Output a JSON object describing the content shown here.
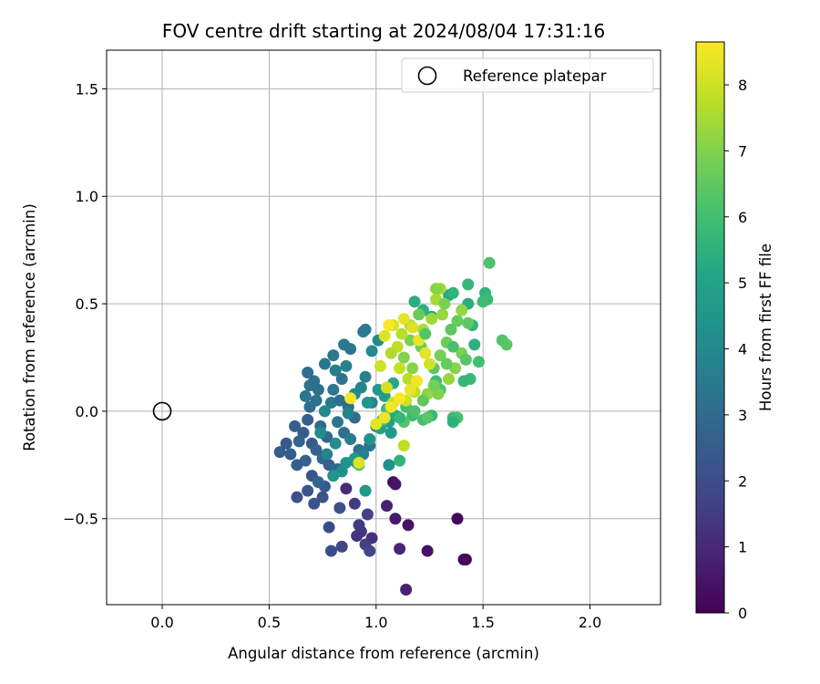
{
  "chart_data": {
    "type": "scatter",
    "title": "FOV centre drift starting at 2024/08/04 17:31:16",
    "xlabel": "Angular distance from reference (arcmin)",
    "ylabel": "Rotation from reference (arcmin)",
    "xlim": [
      -0.26,
      2.33
    ],
    "ylim": [
      -0.9,
      1.68
    ],
    "xticks": [
      "0.0",
      "0.5",
      "1.0",
      "1.5",
      "2.0"
    ],
    "yticks": [
      "−0.5",
      "0.0",
      "0.5",
      "1.0",
      "1.5"
    ],
    "grid": true,
    "legend": {
      "position": "top-right",
      "entries": [
        "Reference platepar"
      ]
    },
    "reference_point": {
      "x": 0.0,
      "y": 0.0
    },
    "colorbar": {
      "label": "Hours from first FF file",
      "range": [
        0,
        8.65
      ],
      "ticks": [
        "0",
        "1",
        "2",
        "3",
        "4",
        "5",
        "6",
        "7",
        "8"
      ],
      "colormap": "viridis"
    },
    "series": [
      {
        "values": [
          {
            "x": 1.08,
            "y": -0.33,
            "h": 0.3
          },
          {
            "x": 1.09,
            "y": -0.34,
            "h": 0.5
          },
          {
            "x": 1.05,
            "y": -0.44,
            "h": 0.8
          },
          {
            "x": 1.09,
            "y": -0.5,
            "h": 0.6
          },
          {
            "x": 1.15,
            "y": -0.53,
            "h": 0.4
          },
          {
            "x": 1.38,
            "y": -0.5,
            "h": 0.2
          },
          {
            "x": 1.42,
            "y": -0.69,
            "h": 0.1
          },
          {
            "x": 1.41,
            "y": -0.69,
            "h": 0.2
          },
          {
            "x": 1.24,
            "y": -0.65,
            "h": 0.4
          },
          {
            "x": 1.11,
            "y": -0.64,
            "h": 0.9
          },
          {
            "x": 1.14,
            "y": -0.83,
            "h": 0.8
          },
          {
            "x": 0.98,
            "y": -0.59,
            "h": 1.2
          },
          {
            "x": 0.93,
            "y": -0.56,
            "h": 1.4
          },
          {
            "x": 0.92,
            "y": -0.53,
            "h": 1.5
          },
          {
            "x": 0.95,
            "y": -0.62,
            "h": 1.6
          },
          {
            "x": 0.97,
            "y": -0.65,
            "h": 1.8
          },
          {
            "x": 0.91,
            "y": -0.58,
            "h": 1.3
          },
          {
            "x": 0.86,
            "y": -0.36,
            "h": 1.1
          },
          {
            "x": 0.9,
            "y": -0.43,
            "h": 1.5
          },
          {
            "x": 0.96,
            "y": -0.48,
            "h": 1.7
          },
          {
            "x": 0.84,
            "y": -0.63,
            "h": 1.9
          },
          {
            "x": 0.79,
            "y": -0.65,
            "h": 2.0
          },
          {
            "x": 0.78,
            "y": -0.54,
            "h": 2.0
          },
          {
            "x": 0.83,
            "y": -0.45,
            "h": 2.1
          },
          {
            "x": 0.75,
            "y": -0.4,
            "h": 2.2
          },
          {
            "x": 0.68,
            "y": -0.37,
            "h": 2.3
          },
          {
            "x": 0.63,
            "y": -0.4,
            "h": 2.1
          },
          {
            "x": 0.71,
            "y": -0.43,
            "h": 2.2
          },
          {
            "x": 0.76,
            "y": -0.35,
            "h": 2.4
          },
          {
            "x": 0.55,
            "y": -0.19,
            "h": 2.5
          },
          {
            "x": 0.58,
            "y": -0.15,
            "h": 2.4
          },
          {
            "x": 0.6,
            "y": -0.2,
            "h": 2.5
          },
          {
            "x": 0.63,
            "y": -0.25,
            "h": 2.6
          },
          {
            "x": 0.67,
            "y": -0.23,
            "h": 2.7
          },
          {
            "x": 0.7,
            "y": -0.3,
            "h": 2.3
          },
          {
            "x": 0.73,
            "y": -0.33,
            "h": 2.8
          },
          {
            "x": 0.62,
            "y": -0.07,
            "h": 2.6
          },
          {
            "x": 0.66,
            "y": -0.1,
            "h": 2.5
          },
          {
            "x": 0.64,
            "y": -0.14,
            "h": 2.8
          },
          {
            "x": 0.68,
            "y": -0.04,
            "h": 2.6
          },
          {
            "x": 0.7,
            "y": -0.15,
            "h": 2.4
          },
          {
            "x": 0.72,
            "y": -0.18,
            "h": 2.7
          },
          {
            "x": 0.75,
            "y": -0.22,
            "h": 2.9
          },
          {
            "x": 0.78,
            "y": -0.25,
            "h": 2.6
          },
          {
            "x": 0.8,
            "y": -0.3,
            "h": 2.5
          },
          {
            "x": 0.82,
            "y": -0.27,
            "h": 2.8
          },
          {
            "x": 0.77,
            "y": -0.12,
            "h": 2.9
          },
          {
            "x": 0.74,
            "y": -0.07,
            "h": 3.0
          },
          {
            "x": 0.69,
            "y": 0.02,
            "h": 3.1
          },
          {
            "x": 0.72,
            "y": 0.05,
            "h": 3.2
          },
          {
            "x": 0.67,
            "y": 0.07,
            "h": 3.3
          },
          {
            "x": 0.69,
            "y": 0.12,
            "h": 3.3
          },
          {
            "x": 0.71,
            "y": 0.14,
            "h": 3.2
          },
          {
            "x": 0.68,
            "y": 0.18,
            "h": 3.1
          },
          {
            "x": 0.73,
            "y": 0.1,
            "h": 3.2
          },
          {
            "x": 0.76,
            "y": 0.22,
            "h": 3.4
          },
          {
            "x": 0.81,
            "y": 0.19,
            "h": 3.6
          },
          {
            "x": 0.8,
            "y": 0.26,
            "h": 3.5
          },
          {
            "x": 0.85,
            "y": 0.31,
            "h": 3.5
          },
          {
            "x": 0.88,
            "y": 0.29,
            "h": 3.4
          },
          {
            "x": 0.94,
            "y": 0.37,
            "h": 3.6
          },
          {
            "x": 0.95,
            "y": 0.38,
            "h": 3.5
          },
          {
            "x": 0.86,
            "y": 0.21,
            "h": 3.7
          },
          {
            "x": 0.84,
            "y": 0.15,
            "h": 3.3
          },
          {
            "x": 0.8,
            "y": 0.1,
            "h": 3.4
          },
          {
            "x": 0.79,
            "y": 0.04,
            "h": 3.5
          },
          {
            "x": 0.83,
            "y": 0.05,
            "h": 3.2
          },
          {
            "x": 0.87,
            "y": 0.02,
            "h": 3.1
          },
          {
            "x": 0.9,
            "y": -0.03,
            "h": 3.0
          },
          {
            "x": 0.82,
            "y": -0.05,
            "h": 3.3
          },
          {
            "x": 0.85,
            "y": -0.1,
            "h": 3.1
          },
          {
            "x": 0.88,
            "y": -0.13,
            "h": 3.6
          },
          {
            "x": 0.92,
            "y": -0.18,
            "h": 3.2
          },
          {
            "x": 0.91,
            "y": -0.24,
            "h": 3.5
          },
          {
            "x": 0.94,
            "y": -0.2,
            "h": 3.7
          },
          {
            "x": 0.97,
            "y": -0.16,
            "h": 3.4
          },
          {
            "x": 1.0,
            "y": -0.07,
            "h": 3.6
          },
          {
            "x": 0.98,
            "y": 0.04,
            "h": 3.8
          },
          {
            "x": 0.95,
            "y": 0.16,
            "h": 3.7
          },
          {
            "x": 0.93,
            "y": 0.11,
            "h": 3.9
          },
          {
            "x": 0.9,
            "y": 0.08,
            "h": 4.0
          },
          {
            "x": 0.87,
            "y": -0.01,
            "h": 3.9
          },
          {
            "x": 0.77,
            "y": -0.2,
            "h": 3.8
          },
          {
            "x": 0.74,
            "y": -0.1,
            "h": 4.1
          },
          {
            "x": 0.76,
            "y": 0.0,
            "h": 4.0
          },
          {
            "x": 0.81,
            "y": -0.15,
            "h": 4.2
          },
          {
            "x": 0.84,
            "y": -0.28,
            "h": 4.3
          },
          {
            "x": 0.8,
            "y": -0.3,
            "h": 4.5
          },
          {
            "x": 0.86,
            "y": -0.24,
            "h": 4.4
          },
          {
            "x": 0.95,
            "y": -0.37,
            "h": 4.6
          },
          {
            "x": 1.06,
            "y": -0.25,
            "h": 4.3
          },
          {
            "x": 1.11,
            "y": -0.23,
            "h": 5.6
          },
          {
            "x": 0.92,
            "y": -0.25,
            "h": 6.2
          },
          {
            "x": 0.9,
            "y": -0.22,
            "h": 4.7
          },
          {
            "x": 0.97,
            "y": -0.13,
            "h": 4.4
          },
          {
            "x": 0.96,
            "y": 0.04,
            "h": 4.5
          },
          {
            "x": 1.01,
            "y": 0.1,
            "h": 4.6
          },
          {
            "x": 1.04,
            "y": 0.07,
            "h": 4.8
          },
          {
            "x": 1.06,
            "y": -0.05,
            "h": 4.9
          },
          {
            "x": 1.02,
            "y": -0.08,
            "h": 5.0
          },
          {
            "x": 1.07,
            "y": -0.1,
            "h": 4.7
          },
          {
            "x": 1.09,
            "y": -0.02,
            "h": 5.1
          },
          {
            "x": 1.08,
            "y": 0.13,
            "h": 5.2
          },
          {
            "x": 1.01,
            "y": 0.33,
            "h": 4.2
          },
          {
            "x": 0.98,
            "y": 0.28,
            "h": 4.1
          },
          {
            "x": 1.18,
            "y": 0.51,
            "h": 5.4
          },
          {
            "x": 1.22,
            "y": 0.47,
            "h": 5.5
          },
          {
            "x": 1.26,
            "y": 0.44,
            "h": 5.3
          },
          {
            "x": 1.34,
            "y": 0.54,
            "h": 5.2
          },
          {
            "x": 1.36,
            "y": 0.55,
            "h": 5.6
          },
          {
            "x": 1.43,
            "y": 0.59,
            "h": 5.7
          },
          {
            "x": 1.51,
            "y": 0.55,
            "h": 5.6
          },
          {
            "x": 1.5,
            "y": 0.51,
            "h": 5.5
          },
          {
            "x": 1.43,
            "y": 0.5,
            "h": 5.4
          },
          {
            "x": 1.45,
            "y": 0.4,
            "h": 5.6
          },
          {
            "x": 1.46,
            "y": 0.31,
            "h": 5.5
          },
          {
            "x": 1.48,
            "y": 0.23,
            "h": 6.0
          },
          {
            "x": 1.44,
            "y": 0.15,
            "h": 5.8
          },
          {
            "x": 1.41,
            "y": 0.14,
            "h": 5.7
          },
          {
            "x": 1.36,
            "y": -0.03,
            "h": 5.8
          },
          {
            "x": 1.38,
            "y": -0.03,
            "h": 6.1
          },
          {
            "x": 1.36,
            "y": -0.05,
            "h": 5.5
          },
          {
            "x": 1.28,
            "y": 0.14,
            "h": 5.9
          },
          {
            "x": 1.3,
            "y": 0.1,
            "h": 6.2
          },
          {
            "x": 1.26,
            "y": -0.02,
            "h": 5.8
          },
          {
            "x": 1.22,
            "y": -0.04,
            "h": 6.0
          },
          {
            "x": 1.24,
            "y": -0.03,
            "h": 6.4
          },
          {
            "x": 1.17,
            "y": -0.02,
            "h": 5.9
          },
          {
            "x": 1.14,
            "y": 0.02,
            "h": 6.1
          },
          {
            "x": 1.13,
            "y": -0.05,
            "h": 6.3
          },
          {
            "x": 1.11,
            "y": -0.03,
            "h": 5.7
          },
          {
            "x": 1.05,
            "y": 0.01,
            "h": 5.9
          },
          {
            "x": 1.03,
            "y": -0.04,
            "h": 6.0
          },
          {
            "x": 1.53,
            "y": 0.69,
            "h": 6.2
          },
          {
            "x": 1.59,
            "y": 0.33,
            "h": 6.3
          },
          {
            "x": 1.61,
            "y": 0.31,
            "h": 6.4
          },
          {
            "x": 1.52,
            "y": 0.52,
            "h": 5.8
          },
          {
            "x": 1.5,
            "y": 0.51,
            "h": 5.9
          },
          {
            "x": 1.43,
            "y": 0.41,
            "h": 6.5
          },
          {
            "x": 1.38,
            "y": 0.42,
            "h": 6.6
          },
          {
            "x": 1.35,
            "y": 0.38,
            "h": 6.4
          },
          {
            "x": 1.33,
            "y": 0.32,
            "h": 6.7
          },
          {
            "x": 1.3,
            "y": 0.26,
            "h": 6.8
          },
          {
            "x": 1.27,
            "y": 0.2,
            "h": 6.5
          },
          {
            "x": 1.21,
            "y": 0.3,
            "h": 6.6
          },
          {
            "x": 1.16,
            "y": 0.33,
            "h": 6.9
          },
          {
            "x": 1.13,
            "y": 0.25,
            "h": 7.0
          },
          {
            "x": 1.17,
            "y": 0.2,
            "h": 7.1
          },
          {
            "x": 1.19,
            "y": 0.14,
            "h": 6.8
          },
          {
            "x": 1.24,
            "y": 0.08,
            "h": 7.2
          },
          {
            "x": 1.29,
            "y": 0.08,
            "h": 7.0
          },
          {
            "x": 1.34,
            "y": 0.15,
            "h": 7.3
          },
          {
            "x": 1.37,
            "y": 0.2,
            "h": 7.1
          },
          {
            "x": 1.4,
            "y": 0.27,
            "h": 6.9
          },
          {
            "x": 1.4,
            "y": 0.47,
            "h": 7.2
          },
          {
            "x": 1.3,
            "y": 0.57,
            "h": 7.4
          },
          {
            "x": 1.28,
            "y": 0.52,
            "h": 7.5
          },
          {
            "x": 1.31,
            "y": 0.45,
            "h": 7.3
          },
          {
            "x": 1.26,
            "y": 0.43,
            "h": 7.4
          },
          {
            "x": 1.22,
            "y": 0.38,
            "h": 7.6
          },
          {
            "x": 1.16,
            "y": 0.4,
            "h": 7.5
          },
          {
            "x": 1.12,
            "y": 0.36,
            "h": 7.7
          },
          {
            "x": 1.1,
            "y": 0.3,
            "h": 7.8
          },
          {
            "x": 1.07,
            "y": 0.27,
            "h": 7.6
          },
          {
            "x": 1.11,
            "y": 0.2,
            "h": 7.9
          },
          {
            "x": 1.15,
            "y": 0.15,
            "h": 7.7
          },
          {
            "x": 1.18,
            "y": 0.09,
            "h": 7.8
          },
          {
            "x": 1.14,
            "y": 0.05,
            "h": 8.0
          },
          {
            "x": 1.08,
            "y": 0.04,
            "h": 7.9
          },
          {
            "x": 1.05,
            "y": 0.11,
            "h": 8.1
          },
          {
            "x": 1.02,
            "y": 0.21,
            "h": 8.0
          },
          {
            "x": 1.04,
            "y": 0.35,
            "h": 8.2
          },
          {
            "x": 1.08,
            "y": 0.4,
            "h": 8.1
          },
          {
            "x": 1.13,
            "y": 0.43,
            "h": 8.3
          },
          {
            "x": 1.17,
            "y": 0.39,
            "h": 8.2
          },
          {
            "x": 1.2,
            "y": 0.33,
            "h": 8.4
          },
          {
            "x": 1.23,
            "y": 0.27,
            "h": 8.3
          },
          {
            "x": 1.25,
            "y": 0.22,
            "h": 8.1
          },
          {
            "x": 1.19,
            "y": 0.14,
            "h": 8.5
          },
          {
            "x": 1.16,
            "y": 0.1,
            "h": 8.4
          },
          {
            "x": 1.11,
            "y": 0.06,
            "h": 8.6
          },
          {
            "x": 1.07,
            "y": 0.02,
            "h": 8.5
          },
          {
            "x": 1.04,
            "y": -0.03,
            "h": 8.4
          },
          {
            "x": 1.0,
            "y": -0.06,
            "h": 8.3
          },
          {
            "x": 1.13,
            "y": -0.16,
            "h": 7.8
          },
          {
            "x": 0.92,
            "y": -0.24,
            "h": 8.2
          },
          {
            "x": 0.88,
            "y": 0.06,
            "h": 8.5
          },
          {
            "x": 1.06,
            "y": 0.4,
            "h": 8.6
          },
          {
            "x": 1.28,
            "y": 0.57,
            "h": 7.1
          },
          {
            "x": 1.32,
            "y": 0.5,
            "h": 6.9
          },
          {
            "x": 1.2,
            "y": 0.45,
            "h": 6.7
          },
          {
            "x": 1.23,
            "y": 0.36,
            "h": 6.3
          },
          {
            "x": 1.36,
            "y": 0.3,
            "h": 6.1
          },
          {
            "x": 1.42,
            "y": 0.24,
            "h": 6.4
          },
          {
            "x": 1.33,
            "y": 0.22,
            "h": 6.6
          },
          {
            "x": 1.27,
            "y": 0.12,
            "h": 6.8
          },
          {
            "x": 1.22,
            "y": 0.05,
            "h": 6.5
          },
          {
            "x": 1.18,
            "y": 0.0,
            "h": 6.2
          }
        ]
      }
    ]
  }
}
